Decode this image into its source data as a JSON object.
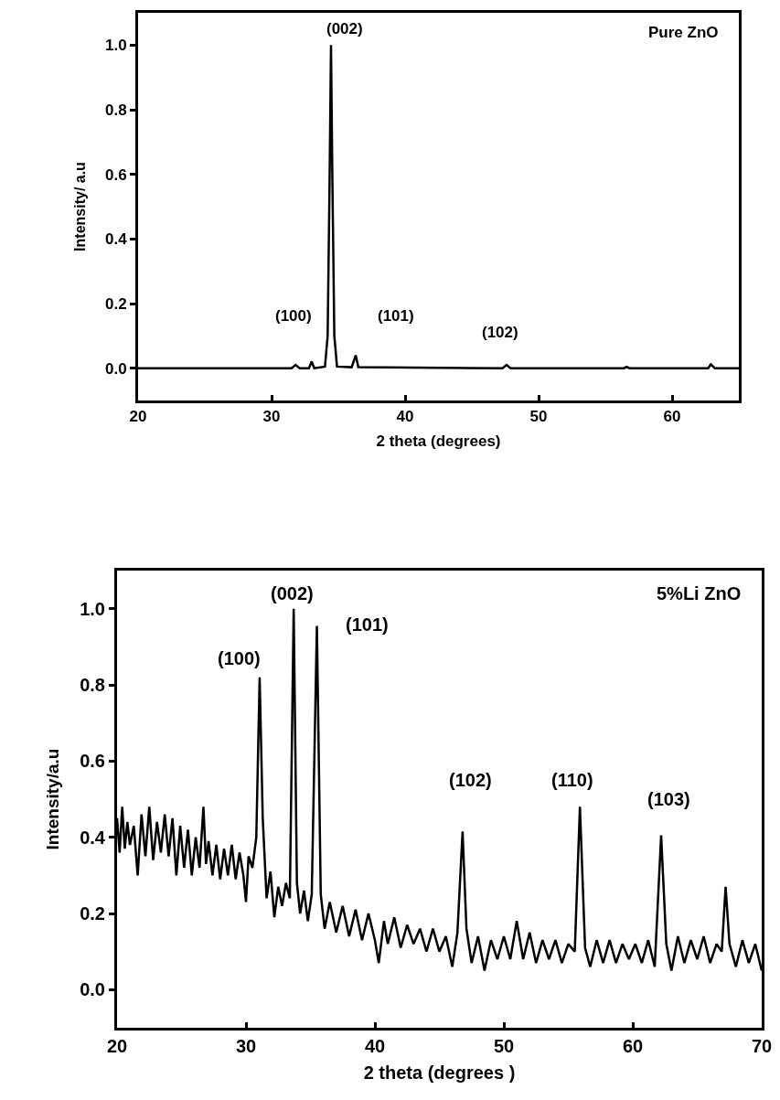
{
  "chart_data": [
    {
      "type": "line",
      "xlabel": "2 theta (degrees)",
      "ylabel": "Intensity/ a.u",
      "xlim": [
        20,
        65
      ],
      "ylim": [
        -0.1,
        1.1
      ],
      "xticks": [
        20,
        30,
        40,
        50,
        60
      ],
      "yticks": [
        {
          "value": 0,
          "label": "0.0"
        },
        {
          "value": 0.2,
          "label": "0.2"
        },
        {
          "value": 0.4,
          "label": "0.4"
        },
        {
          "value": 0.6,
          "label": "0.6"
        },
        {
          "value": 0.8,
          "label": "0.8"
        },
        {
          "value": 1,
          "label": "1.0"
        }
      ],
      "x": [
        20,
        31.5,
        31.8,
        32.1,
        32.8,
        33.0,
        33.2,
        34.0,
        34.2,
        34.35,
        34.45,
        34.55,
        34.7,
        34.9,
        36.0,
        36.3,
        36.5,
        47.3,
        47.6,
        47.9,
        56.4,
        56.6,
        56.8,
        62.7,
        62.9,
        63.2,
        65
      ],
      "series": [
        {
          "color": "#000000",
          "values": [
            0,
            0,
            0.01,
            0,
            0,
            0.02,
            0,
            0.005,
            0.1,
            0.6,
            1.0,
            0.6,
            0.1,
            0.005,
            0.003,
            0.04,
            0.003,
            0,
            0.01,
            0,
            0,
            0.004,
            0,
            0,
            0.012,
            0,
            0
          ]
        }
      ],
      "annotations": [
        "Pure ZnO",
        "(100)",
        "(002)",
        "(101)",
        "(102)"
      ],
      "grid": false
    },
    {
      "type": "line",
      "xlabel": "2 theta (degrees )",
      "ylabel": "Intensity/a.u",
      "xlim": [
        20,
        70
      ],
      "ylim": [
        -0.1,
        1.1
      ],
      "xticks": [
        20,
        30,
        40,
        50,
        60,
        70
      ],
      "yticks": [
        {
          "value": 0,
          "label": "0.0"
        },
        {
          "value": 0.2,
          "label": "0.2"
        },
        {
          "value": 0.4,
          "label": "0.4"
        },
        {
          "value": 0.6,
          "label": "0.6"
        },
        {
          "value": 0.8,
          "label": "0.8"
        },
        {
          "value": 1,
          "label": "1.0"
        }
      ],
      "x": [
        20,
        20.2,
        20.4,
        20.6,
        20.8,
        21,
        21.3,
        21.6,
        21.9,
        22.2,
        22.5,
        22.8,
        23.1,
        23.4,
        23.7,
        24,
        24.3,
        24.6,
        24.9,
        25.2,
        25.5,
        25.8,
        26.1,
        26.4,
        26.7,
        26.9,
        27.1,
        27.4,
        27.7,
        28,
        28.3,
        28.6,
        28.9,
        29.2,
        29.5,
        29.8,
        30,
        30.2,
        30.5,
        30.8,
        31.06,
        31.3,
        31.6,
        31.9,
        32.2,
        32.5,
        32.8,
        33.1,
        33.4,
        33.7,
        33.95,
        34.2,
        34.5,
        34.8,
        35.1,
        35.5,
        35.8,
        36.1,
        36.5,
        37,
        37.5,
        38,
        38.5,
        39,
        39.5,
        40,
        40.3,
        40.7,
        41,
        41.5,
        42,
        42.5,
        43,
        43.5,
        44,
        44.5,
        45,
        45.5,
        46,
        46.4,
        46.8,
        47.1,
        47.5,
        48,
        48.5,
        49,
        49.5,
        50,
        50.5,
        51,
        51.5,
        52,
        52.5,
        53,
        53.5,
        54,
        54.5,
        55,
        55.5,
        55.9,
        56.3,
        56.7,
        57.2,
        57.7,
        58.2,
        58.7,
        59.2,
        59.7,
        60.2,
        60.7,
        61.2,
        61.7,
        62.2,
        62.6,
        63,
        63.5,
        64,
        64.5,
        65,
        65.5,
        66,
        66.5,
        66.9,
        67.2,
        67.5,
        68,
        68.5,
        69,
        69.5,
        70
      ],
      "series": [
        {
          "color": "#000000",
          "values": [
            0.45,
            0.36,
            0.48,
            0.37,
            0.44,
            0.38,
            0.43,
            0.3,
            0.46,
            0.35,
            0.48,
            0.34,
            0.44,
            0.36,
            0.46,
            0.35,
            0.45,
            0.3,
            0.43,
            0.32,
            0.42,
            0.3,
            0.4,
            0.32,
            0.48,
            0.33,
            0.39,
            0.3,
            0.38,
            0.29,
            0.37,
            0.3,
            0.38,
            0.29,
            0.36,
            0.3,
            0.23,
            0.35,
            0.32,
            0.4,
            0.82,
            0.45,
            0.24,
            0.31,
            0.19,
            0.27,
            0.22,
            0.28,
            0.24,
            1.0,
            0.28,
            0.2,
            0.26,
            0.18,
            0.25,
            0.955,
            0.25,
            0.16,
            0.23,
            0.15,
            0.22,
            0.14,
            0.21,
            0.13,
            0.2,
            0.13,
            0.07,
            0.18,
            0.12,
            0.19,
            0.11,
            0.17,
            0.12,
            0.16,
            0.1,
            0.16,
            0.1,
            0.14,
            0.06,
            0.15,
            0.415,
            0.16,
            0.07,
            0.14,
            0.05,
            0.13,
            0.08,
            0.14,
            0.08,
            0.18,
            0.08,
            0.15,
            0.07,
            0.13,
            0.08,
            0.13,
            0.07,
            0.12,
            0.1,
            0.48,
            0.11,
            0.06,
            0.13,
            0.07,
            0.13,
            0.07,
            0.12,
            0.08,
            0.12,
            0.07,
            0.13,
            0.06,
            0.405,
            0.12,
            0.05,
            0.14,
            0.07,
            0.13,
            0.08,
            0.14,
            0.07,
            0.12,
            0.1,
            0.27,
            0.12,
            0.06,
            0.13,
            0.07,
            0.12,
            0.05
          ]
        }
      ],
      "annotations": [
        "5%Li ZnO",
        "(100)",
        "(002)",
        "(101)",
        "(102)",
        "(110)",
        "(103)"
      ],
      "grid": false
    }
  ]
}
